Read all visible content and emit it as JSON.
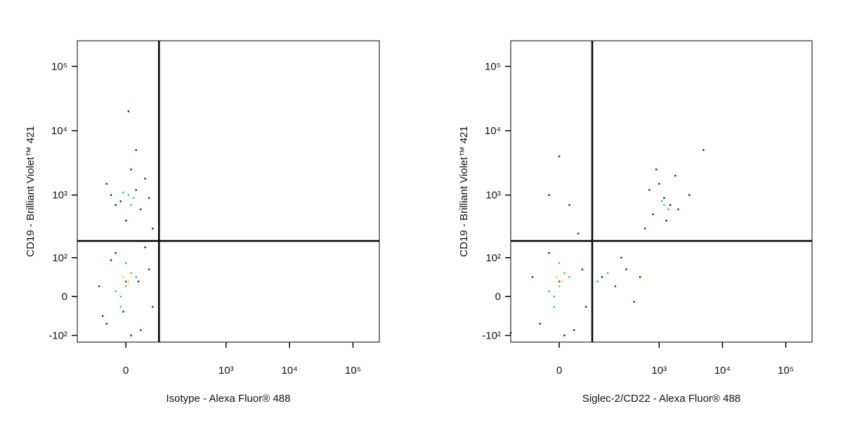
{
  "chart_data": [
    {
      "type": "scatter",
      "xlabel": "Isotype - Alexa Fluor® 488",
      "ylabel": "CD19 - Brilliant Violet™ 421",
      "xscale": "biexponential",
      "yscale": "biexponential",
      "xlim": [
        -150,
        260000
      ],
      "ylim": [
        -130,
        250000
      ],
      "xticks": [
        0,
        {
          "value": 1000,
          "label": "10³"
        },
        {
          "value": 10000,
          "label": "10⁴"
        },
        {
          "value": 100000,
          "label": "10⁵"
        }
      ],
      "yticks": [
        {
          "value": -100,
          "label": "-10²"
        },
        0,
        {
          "value": 100,
          "label": "10²"
        },
        {
          "value": 1000,
          "label": "10³"
        },
        {
          "value": 10000,
          "label": "10⁴"
        },
        {
          "value": 100000,
          "label": "10⁵"
        }
      ],
      "quadrant_gate": [
        80,
        190
      ],
      "series": [
        {
          "color": "#1010e0",
          "x": [
            -40,
            30,
            -20,
            50,
            -60,
            10,
            40,
            -30,
            60,
            -50,
            20,
            -10,
            30,
            -40,
            10,
            0,
            50,
            -30,
            20,
            5,
            60,
            -20,
            40,
            -5,
            25
          ],
          "y": [
            -60,
            -80,
            120,
            60,
            20,
            -100,
            150,
            90,
            -20,
            -40,
            1200,
            800,
            600,
            1500,
            2500,
            400,
            900,
            1000,
            5000,
            20000,
            300,
            700,
            1800,
            -30,
            30
          ]
        },
        {
          "color": "#00c8ff",
          "x": [
            -10,
            20,
            0,
            -20,
            15,
            -5,
            10
          ],
          "y": [
            -20,
            40,
            80,
            10,
            900,
            1100,
            700
          ]
        },
        {
          "color": "#30e030",
          "x": [
            0,
            10,
            -10,
            5
          ],
          "y": [
            20,
            50,
            0,
            1000
          ]
        },
        {
          "color": "#f0e000",
          "x": [
            5,
            -5
          ],
          "y": [
            30,
            40
          ]
        },
        {
          "color": "#e01010",
          "x": [
            0
          ],
          "y": [
            30
          ]
        }
      ]
    },
    {
      "type": "scatter",
      "xlabel": "Siglec-2/CD22 - Alexa Fluor® 488",
      "ylabel": "CD19 - Brilliant Violet™ 421",
      "xscale": "biexponential",
      "yscale": "biexponential",
      "xlim": [
        -150,
        260000
      ],
      "ylim": [
        -130,
        250000
      ],
      "xticks": [
        0,
        {
          "value": 1000,
          "label": "10³"
        },
        {
          "value": 10000,
          "label": "10⁴"
        },
        {
          "value": 100000,
          "label": "10⁵"
        }
      ],
      "yticks": [
        {
          "value": -100,
          "label": "-10²"
        },
        0,
        {
          "value": 100,
          "label": "10²"
        },
        {
          "value": 1000,
          "label": "10³"
        },
        {
          "value": 10000,
          "label": "10⁴"
        },
        {
          "value": 100000,
          "label": "10⁵"
        }
      ],
      "quadrant_gate": [
        80,
        190
      ],
      "series": [
        {
          "color": "#1010e0",
          "x": [
            -40,
            30,
            -60,
            50,
            -20,
            60,
            10,
            -150,
            120,
            200,
            300,
            400,
            250,
            500,
            800,
            1200,
            1500,
            1000,
            2000,
            700,
            1300,
            3000,
            900,
            600,
            1800,
            5000,
            20,
            0,
            40,
            -20
          ],
          "y": [
            -60,
            -80,
            40,
            60,
            120,
            -20,
            -100,
            -90,
            40,
            20,
            60,
            -10,
            100,
            40,
            500,
            900,
            700,
            1500,
            600,
            1200,
            400,
            1000,
            2500,
            300,
            2000,
            5000,
            700,
            4000,
            250,
            1000
          ]
        },
        {
          "color": "#00c8ff",
          "x": [
            -10,
            20,
            0,
            -20,
            100,
            150,
            1100,
            1400
          ],
          "y": [
            -20,
            40,
            80,
            10,
            30,
            50,
            800,
            600
          ]
        },
        {
          "color": "#30e030",
          "x": [
            0,
            10,
            -10,
            1200
          ],
          "y": [
            20,
            50,
            0,
            700
          ]
        },
        {
          "color": "#f0e000",
          "x": [
            5,
            -5
          ],
          "y": [
            30,
            40
          ]
        },
        {
          "color": "#e01010",
          "x": [
            0
          ],
          "y": [
            30
          ]
        }
      ]
    }
  ]
}
